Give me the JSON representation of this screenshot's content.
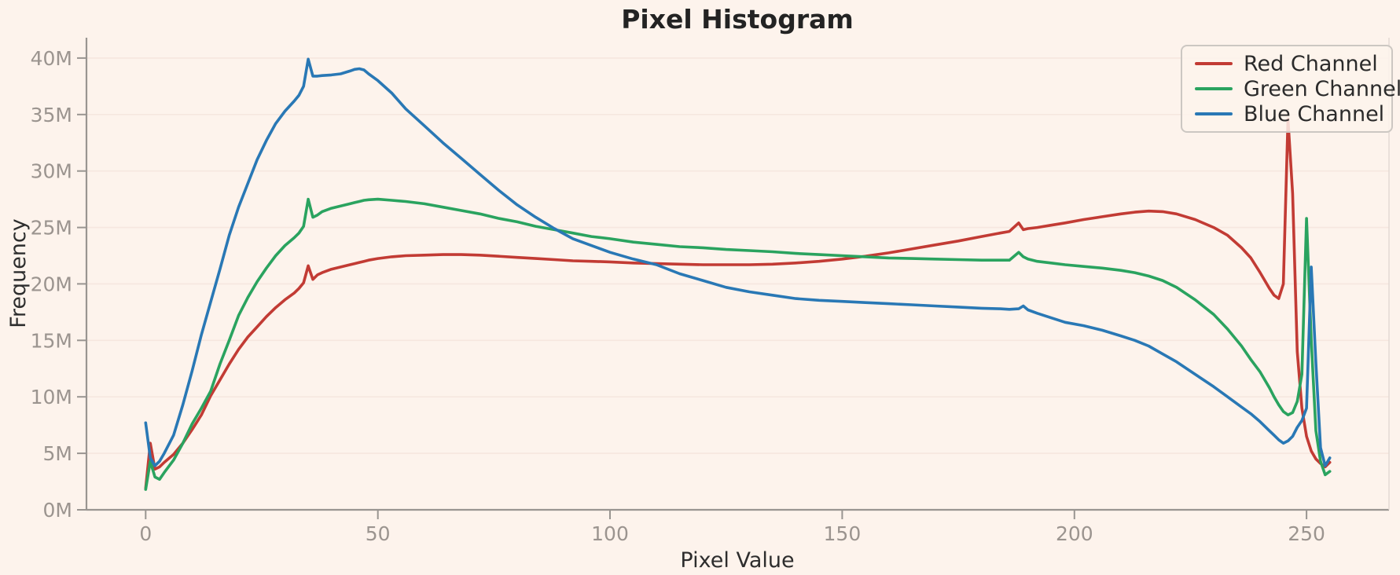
{
  "figure": {
    "background_color": "#fdf3ec",
    "grid_color": "#f6e7df",
    "spine_color": "#999591",
    "faint_spine_color": "#e3dad3",
    "tick_label_color": "#9b948f",
    "axis_label_color": "#2d2d2d",
    "title_color": "#232323",
    "legend_bg": "rgba(253,243,236,0.85)",
    "legend_text_color": "#2b2b2b"
  },
  "chart_data": {
    "type": "line",
    "title": "Pixel Histogram",
    "xlabel": "Pixel Value",
    "ylabel": "Frequency",
    "y_unit": "millions",
    "grid": "horizontal",
    "legend_position": "top-right",
    "xlim": [
      -12.75,
      267.75
    ],
    "ylim": [
      0,
      41.8
    ],
    "x_ticks": [
      0,
      50,
      100,
      150,
      200,
      250
    ],
    "y_ticks": [
      0,
      5,
      10,
      15,
      20,
      25,
      30,
      35,
      40
    ],
    "y_tick_labels": [
      "0M",
      "5M",
      "10M",
      "15M",
      "20M",
      "25M",
      "30M",
      "35M",
      "40M"
    ],
    "x": [
      0,
      1,
      2,
      3,
      4,
      6,
      8,
      10,
      12,
      14,
      16,
      18,
      20,
      22,
      24,
      26,
      28,
      30,
      32,
      33,
      34,
      35,
      36,
      37,
      38,
      40,
      42,
      44,
      45,
      46,
      47,
      48,
      50,
      53,
      56,
      60,
      64,
      68,
      72,
      76,
      80,
      84,
      88,
      92,
      96,
      100,
      105,
      110,
      115,
      120,
      125,
      130,
      135,
      140,
      145,
      150,
      155,
      160,
      165,
      170,
      175,
      180,
      184,
      186,
      188,
      189,
      190,
      192,
      195,
      198,
      202,
      206,
      210,
      213,
      216,
      219,
      222,
      226,
      230,
      233,
      236,
      238,
      240,
      242,
      243,
      244,
      245,
      246,
      247,
      248,
      249,
      250,
      251,
      252,
      253,
      254,
      255
    ],
    "series": [
      {
        "name": "Red Channel",
        "color": "#c23b34",
        "values": [
          1.9,
          5.9,
          3.6,
          3.8,
          4.2,
          4.9,
          5.9,
          7.1,
          8.4,
          10.1,
          11.5,
          12.9,
          14.2,
          15.3,
          16.2,
          17.1,
          17.9,
          18.6,
          19.2,
          19.6,
          20.1,
          21.6,
          20.4,
          20.8,
          21.0,
          21.3,
          21.5,
          21.7,
          21.8,
          21.9,
          22.0,
          22.1,
          22.25,
          22.4,
          22.5,
          22.55,
          22.6,
          22.6,
          22.55,
          22.45,
          22.35,
          22.25,
          22.15,
          22.05,
          22.0,
          21.95,
          21.85,
          21.8,
          21.75,
          21.7,
          21.7,
          21.7,
          21.75,
          21.85,
          22.0,
          22.2,
          22.45,
          22.75,
          23.1,
          23.45,
          23.8,
          24.2,
          24.5,
          24.65,
          25.4,
          24.8,
          24.9,
          25.0,
          25.2,
          25.4,
          25.7,
          25.95,
          26.2,
          26.35,
          26.45,
          26.4,
          26.2,
          25.7,
          25.0,
          24.3,
          23.2,
          22.3,
          21.0,
          19.6,
          19.0,
          18.7,
          20.0,
          34.6,
          28.0,
          14.0,
          9.0,
          6.5,
          5.2,
          4.5,
          4.1,
          3.8,
          4.2
        ]
      },
      {
        "name": "Green Channel",
        "color": "#2aa35f",
        "values": [
          1.8,
          4.3,
          2.9,
          2.7,
          3.3,
          4.4,
          5.9,
          7.6,
          9.0,
          10.5,
          12.9,
          15.0,
          17.2,
          18.8,
          20.2,
          21.4,
          22.5,
          23.4,
          24.1,
          24.5,
          25.1,
          27.5,
          25.9,
          26.1,
          26.4,
          26.7,
          26.9,
          27.1,
          27.2,
          27.3,
          27.4,
          27.45,
          27.5,
          27.4,
          27.3,
          27.1,
          26.8,
          26.5,
          26.2,
          25.8,
          25.5,
          25.1,
          24.8,
          24.5,
          24.2,
          24.0,
          23.7,
          23.5,
          23.3,
          23.2,
          23.05,
          22.95,
          22.85,
          22.7,
          22.6,
          22.5,
          22.4,
          22.3,
          22.25,
          22.2,
          22.15,
          22.1,
          22.1,
          22.1,
          22.8,
          22.4,
          22.2,
          22.0,
          21.85,
          21.7,
          21.55,
          21.4,
          21.2,
          21.0,
          20.7,
          20.3,
          19.7,
          18.6,
          17.3,
          16.0,
          14.5,
          13.3,
          12.2,
          10.8,
          10.0,
          9.3,
          8.7,
          8.4,
          8.6,
          9.6,
          12.0,
          25.8,
          15.0,
          7.0,
          4.3,
          3.1,
          3.4
        ]
      },
      {
        "name": "Blue Channel",
        "color": "#2978b5",
        "values": [
          7.7,
          4.6,
          3.9,
          4.3,
          5.0,
          6.6,
          9.3,
          12.3,
          15.5,
          18.4,
          21.3,
          24.3,
          26.8,
          28.9,
          31.0,
          32.7,
          34.2,
          35.3,
          36.2,
          36.7,
          37.5,
          39.9,
          38.4,
          38.4,
          38.45,
          38.5,
          38.6,
          38.85,
          39.0,
          39.05,
          38.95,
          38.6,
          38.0,
          36.9,
          35.5,
          34.0,
          32.5,
          31.1,
          29.7,
          28.3,
          27.0,
          25.9,
          24.9,
          24.0,
          23.4,
          22.8,
          22.2,
          21.7,
          20.9,
          20.3,
          19.7,
          19.3,
          19.0,
          18.7,
          18.55,
          18.45,
          18.35,
          18.25,
          18.15,
          18.05,
          17.95,
          17.85,
          17.8,
          17.75,
          17.8,
          18.05,
          17.7,
          17.4,
          17.0,
          16.6,
          16.3,
          15.9,
          15.4,
          15.0,
          14.5,
          13.8,
          13.1,
          12.0,
          10.9,
          10.0,
          9.1,
          8.5,
          7.8,
          7.0,
          6.6,
          6.2,
          5.9,
          6.1,
          6.5,
          7.3,
          7.9,
          9.0,
          21.5,
          13.0,
          5.5,
          3.9,
          4.6
        ]
      }
    ]
  }
}
